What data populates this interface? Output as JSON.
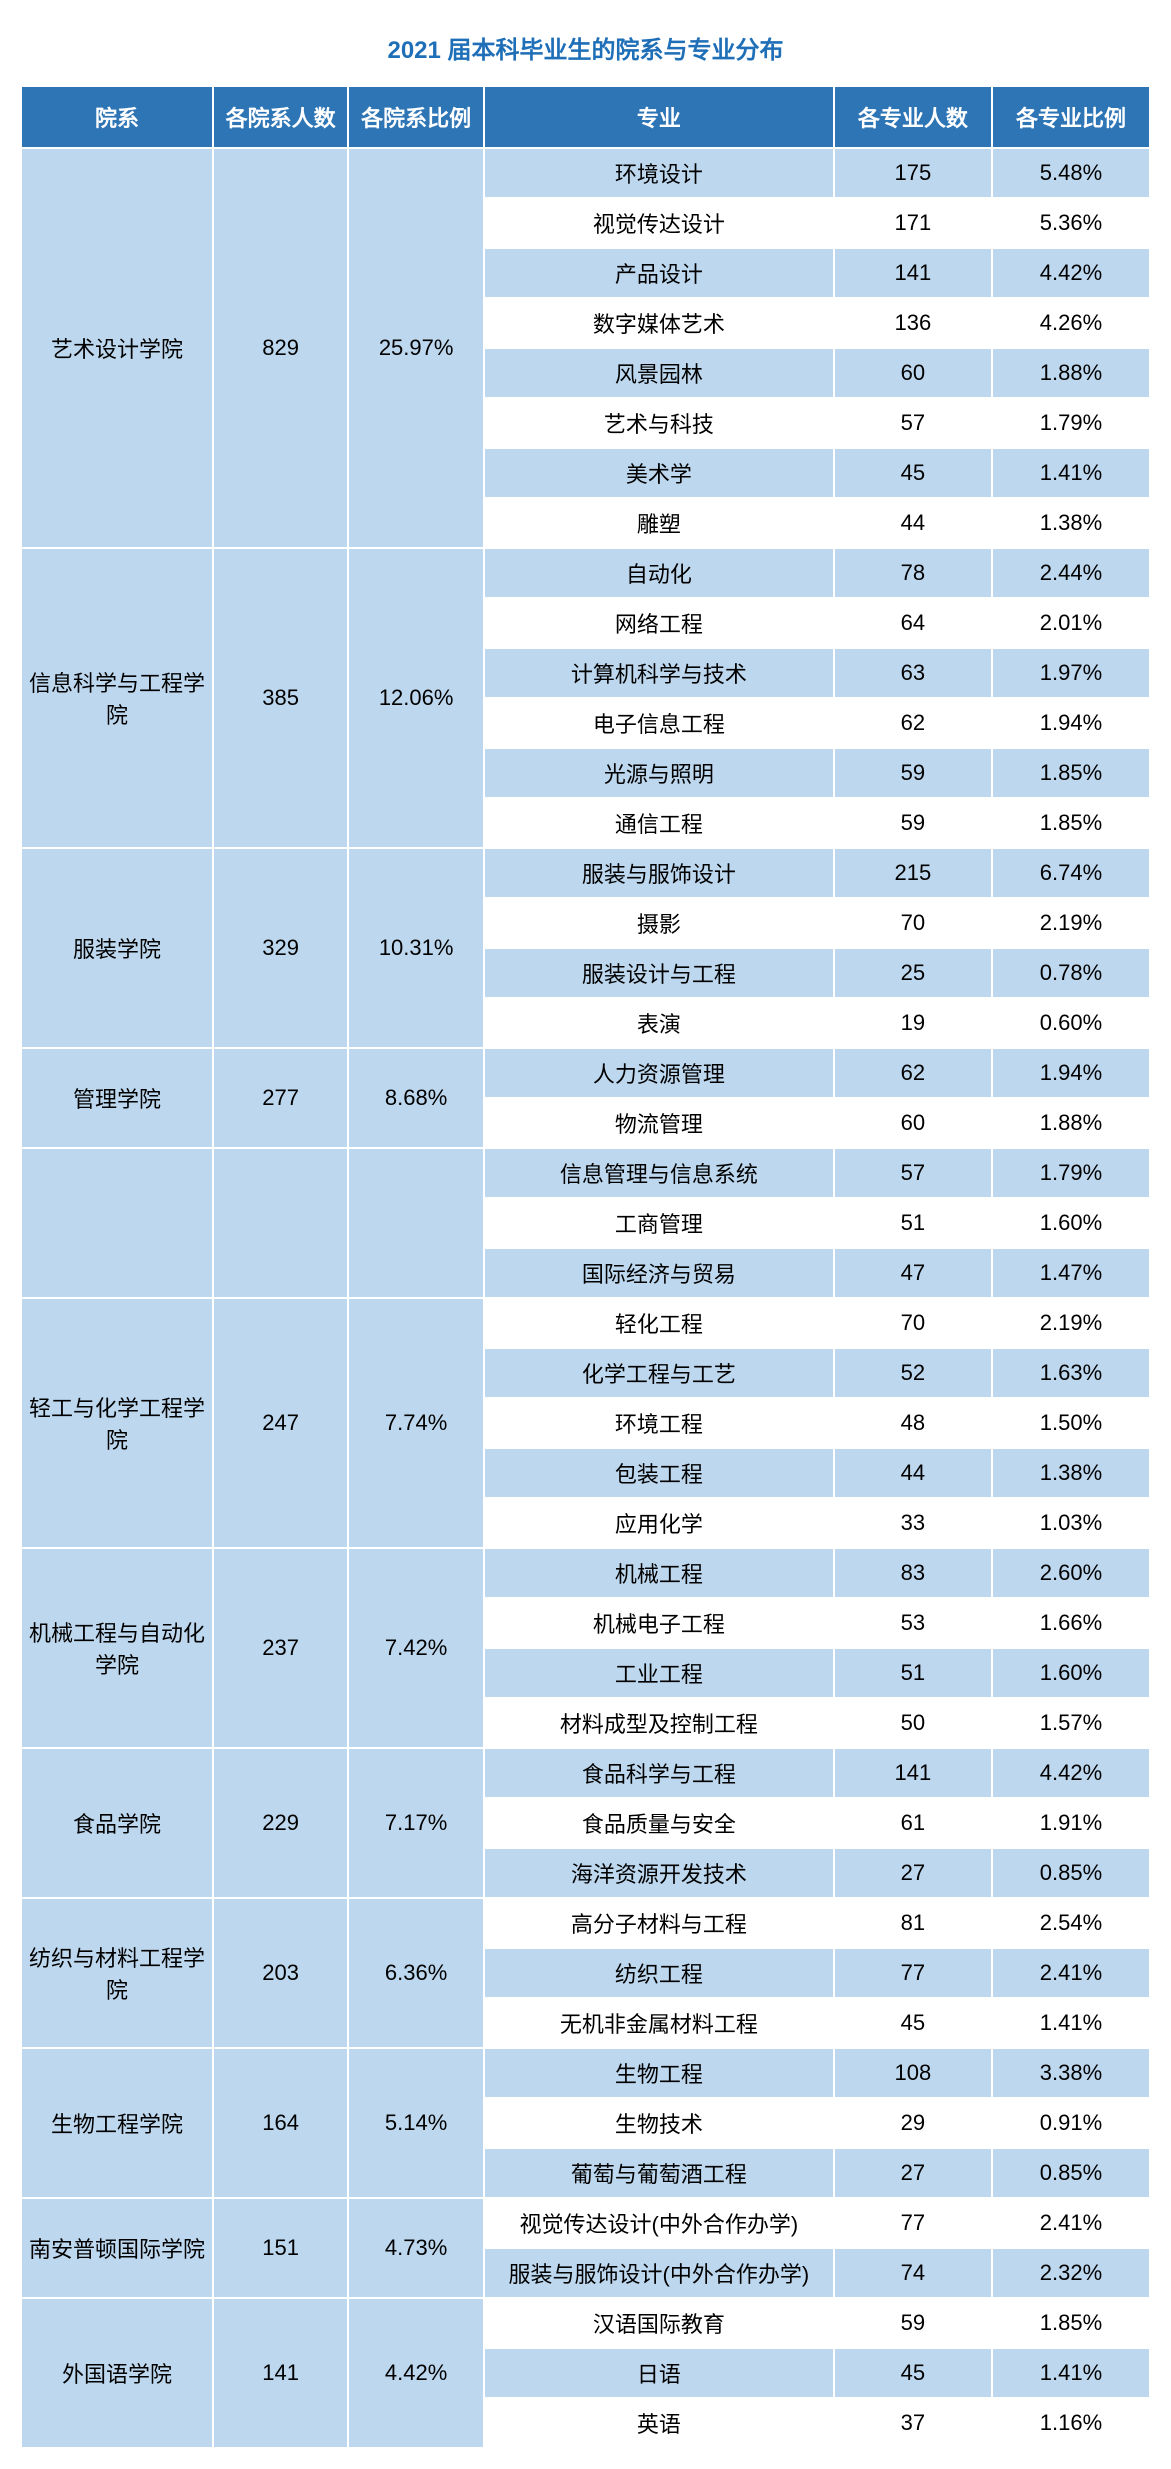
{
  "title": "2021 届本科毕业生的院系与专业分布",
  "headers": {
    "dept": "院系",
    "dept_count": "各院系人数",
    "dept_pct": "各院系比例",
    "major": "专业",
    "major_count": "各专业人数",
    "major_pct": "各专业比例"
  },
  "colors": {
    "header_bg": "#2e75b6",
    "header_fg": "#ffffff",
    "stripe_odd": "#bdd7ee",
    "stripe_even": "#ffffff",
    "title_color": "#1f6fb8",
    "border": "#ffffff"
  },
  "typography": {
    "title_fontsize": 24,
    "cell_fontsize": 22,
    "header_fontweight": "bold"
  },
  "departments": [
    {
      "name": "艺术设计学院",
      "count": "829",
      "pct": "25.97%",
      "majors": [
        {
          "name": "环境设计",
          "count": "175",
          "pct": "5.48%"
        },
        {
          "name": "视觉传达设计",
          "count": "171",
          "pct": "5.36%"
        },
        {
          "name": "产品设计",
          "count": "141",
          "pct": "4.42%"
        },
        {
          "name": "数字媒体艺术",
          "count": "136",
          "pct": "4.26%"
        },
        {
          "name": "风景园林",
          "count": "60",
          "pct": "1.88%"
        },
        {
          "name": "艺术与科技",
          "count": "57",
          "pct": "1.79%"
        },
        {
          "name": "美术学",
          "count": "45",
          "pct": "1.41%"
        },
        {
          "name": "雕塑",
          "count": "44",
          "pct": "1.38%"
        }
      ]
    },
    {
      "name": "信息科学与工程学院",
      "count": "385",
      "pct": "12.06%",
      "majors": [
        {
          "name": "自动化",
          "count": "78",
          "pct": "2.44%"
        },
        {
          "name": "网络工程",
          "count": "64",
          "pct": "2.01%"
        },
        {
          "name": "计算机科学与技术",
          "count": "63",
          "pct": "1.97%"
        },
        {
          "name": "电子信息工程",
          "count": "62",
          "pct": "1.94%"
        },
        {
          "name": "光源与照明",
          "count": "59",
          "pct": "1.85%"
        },
        {
          "name": "通信工程",
          "count": "59",
          "pct": "1.85%"
        }
      ]
    },
    {
      "name": "服装学院",
      "count": "329",
      "pct": "10.31%",
      "majors": [
        {
          "name": "服装与服饰设计",
          "count": "215",
          "pct": "6.74%"
        },
        {
          "name": "摄影",
          "count": "70",
          "pct": "2.19%"
        },
        {
          "name": "服装设计与工程",
          "count": "25",
          "pct": "0.78%"
        },
        {
          "name": "表演",
          "count": "19",
          "pct": "0.60%"
        }
      ]
    },
    {
      "name": "管理学院",
      "count": "277",
      "pct": "8.68%",
      "majors": [
        {
          "name": "人力资源管理",
          "count": "62",
          "pct": "1.94%"
        },
        {
          "name": "物流管理",
          "count": "60",
          "pct": "1.88%"
        }
      ]
    },
    {
      "name": "",
      "count": "",
      "pct": "",
      "majors": [
        {
          "name": "信息管理与信息系统",
          "count": "57",
          "pct": "1.79%"
        },
        {
          "name": "工商管理",
          "count": "51",
          "pct": "1.60%"
        },
        {
          "name": "国际经济与贸易",
          "count": "47",
          "pct": "1.47%"
        }
      ]
    },
    {
      "name": "轻工与化学工程学院",
      "count": "247",
      "pct": "7.74%",
      "majors": [
        {
          "name": "轻化工程",
          "count": "70",
          "pct": "2.19%"
        },
        {
          "name": "化学工程与工艺",
          "count": "52",
          "pct": "1.63%"
        },
        {
          "name": "环境工程",
          "count": "48",
          "pct": "1.50%"
        },
        {
          "name": "包装工程",
          "count": "44",
          "pct": "1.38%"
        },
        {
          "name": "应用化学",
          "count": "33",
          "pct": "1.03%"
        }
      ]
    },
    {
      "name": "机械工程与自动化学院",
      "count": "237",
      "pct": "7.42%",
      "majors": [
        {
          "name": "机械工程",
          "count": "83",
          "pct": "2.60%"
        },
        {
          "name": "机械电子工程",
          "count": "53",
          "pct": "1.66%"
        },
        {
          "name": "工业工程",
          "count": "51",
          "pct": "1.60%"
        },
        {
          "name": "材料成型及控制工程",
          "count": "50",
          "pct": "1.57%"
        }
      ]
    },
    {
      "name": "食品学院",
      "count": "229",
      "pct": "7.17%",
      "majors": [
        {
          "name": "食品科学与工程",
          "count": "141",
          "pct": "4.42%"
        },
        {
          "name": "食品质量与安全",
          "count": "61",
          "pct": "1.91%"
        },
        {
          "name": "海洋资源开发技术",
          "count": "27",
          "pct": "0.85%"
        }
      ]
    },
    {
      "name": "纺织与材料工程学院",
      "count": "203",
      "pct": "6.36%",
      "majors": [
        {
          "name": "高分子材料与工程",
          "count": "81",
          "pct": "2.54%"
        },
        {
          "name": "纺织工程",
          "count": "77",
          "pct": "2.41%"
        },
        {
          "name": "无机非金属材料工程",
          "count": "45",
          "pct": "1.41%"
        }
      ]
    },
    {
      "name": "生物工程学院",
      "count": "164",
      "pct": "5.14%",
      "majors": [
        {
          "name": "生物工程",
          "count": "108",
          "pct": "3.38%"
        },
        {
          "name": "生物技术",
          "count": "29",
          "pct": "0.91%"
        },
        {
          "name": "葡萄与葡萄酒工程",
          "count": "27",
          "pct": "0.85%"
        }
      ]
    },
    {
      "name": "南安普顿国际学院",
      "count": "151",
      "pct": "4.73%",
      "majors": [
        {
          "name": "视觉传达设计(中外合作办学)",
          "count": "77",
          "pct": "2.41%"
        },
        {
          "name": "服装与服饰设计(中外合作办学)",
          "count": "74",
          "pct": "2.32%"
        }
      ]
    },
    {
      "name": "外国语学院",
      "count": "141",
      "pct": "4.42%",
      "majors": [
        {
          "name": "汉语国际教育",
          "count": "59",
          "pct": "1.85%"
        },
        {
          "name": "日语",
          "count": "45",
          "pct": "1.41%"
        },
        {
          "name": "英语",
          "count": "37",
          "pct": "1.16%"
        }
      ]
    }
  ]
}
